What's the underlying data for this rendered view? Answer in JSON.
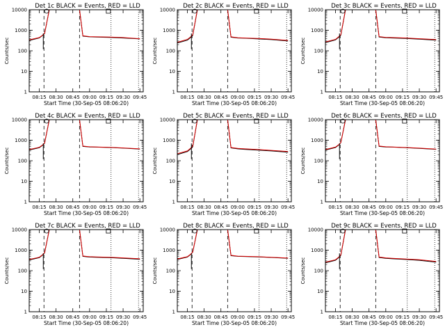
{
  "colors": {
    "events": "#000000",
    "lld": "#dd0000",
    "background": "#ffffff"
  },
  "common": {
    "ylabel": "Counts/sec",
    "y_ticks": [
      1,
      10,
      100,
      1000,
      10000
    ],
    "y_tick_labels": [
      "1",
      "10",
      "100",
      "1000",
      "10000"
    ],
    "x_range": [
      8.1,
      9.8
    ],
    "x_ticks": [
      8.25,
      8.5,
      8.75,
      9.0,
      9.25,
      9.5,
      9.75
    ],
    "x_tick_labels": [
      "08:15",
      "08:30",
      "08:45",
      "09:00",
      "09:15",
      "09:30",
      "09:45"
    ],
    "dashed_lines_x": [
      8.32,
      8.85
    ],
    "dotted_lines_x": [
      9.32,
      9.73
    ],
    "marker_x": 9.28
  },
  "chart_data": [
    {
      "type": "line",
      "panel": 1,
      "title": "Det 1c BLACK = Events, RED = LLD",
      "xlabel": "Start Time (30-Sep-05 08:06:20)",
      "ylabel": "Counts/sec",
      "xlim": [
        8.1,
        9.8
      ],
      "ylim": [
        1,
        10000
      ],
      "yscale": "log",
      "series": [
        {
          "name": "Events",
          "color": "#000000",
          "x": [
            8.1,
            8.25,
            8.3,
            8.33,
            8.4,
            8.85,
            8.9,
            9.0,
            9.1,
            9.3,
            9.5,
            9.75
          ],
          "y": [
            320,
            420,
            560,
            700,
            10000,
            10000,
            520,
            480,
            470,
            450,
            420,
            380
          ]
        },
        {
          "name": "LLD",
          "color": "#dd0000",
          "x": [
            8.1,
            8.25,
            8.3,
            8.33,
            8.4,
            8.85,
            8.9,
            9.0,
            9.1,
            9.3,
            9.5,
            9.75
          ],
          "y": [
            340,
            440,
            580,
            720,
            10000,
            10000,
            540,
            490,
            480,
            470,
            440,
            390
          ]
        }
      ]
    },
    {
      "type": "line",
      "panel": 2,
      "title": "Det 2c BLACK = Events, RED = LLD",
      "xlabel": "Start Time (30-Sep-05 08:06:20)",
      "ylabel": "Counts/sec",
      "xlim": [
        8.1,
        9.8
      ],
      "ylim": [
        1,
        10000
      ],
      "yscale": "log",
      "series": [
        {
          "name": "Events",
          "color": "#000000",
          "x": [
            8.1,
            8.25,
            8.3,
            8.33,
            8.4,
            8.85,
            8.9,
            9.0,
            9.1,
            9.3,
            9.5,
            9.75
          ],
          "y": [
            240,
            330,
            450,
            560,
            10000,
            10000,
            460,
            420,
            410,
            380,
            350,
            300
          ]
        },
        {
          "name": "LLD",
          "color": "#dd0000",
          "x": [
            8.1,
            8.25,
            8.3,
            8.33,
            8.4,
            8.85,
            8.9,
            9.0,
            9.1,
            9.3,
            9.5,
            9.75
          ],
          "y": [
            260,
            360,
            480,
            600,
            10000,
            10000,
            480,
            430,
            420,
            400,
            370,
            320
          ]
        }
      ]
    },
    {
      "type": "line",
      "panel": 3,
      "title": "Det 3c BLACK = Events, RED = LLD",
      "xlabel": "Start Time (30-Sep-05 08:06:20)",
      "ylabel": "Counts/sec",
      "xlim": [
        8.1,
        9.8
      ],
      "ylim": [
        1,
        10000
      ],
      "yscale": "log",
      "series": [
        {
          "name": "Events",
          "color": "#000000",
          "x": [
            8.1,
            8.25,
            8.3,
            8.33,
            8.4,
            8.85,
            8.9,
            9.0,
            9.1,
            9.3,
            9.5,
            9.75
          ],
          "y": [
            250,
            340,
            460,
            580,
            10000,
            10000,
            470,
            430,
            420,
            400,
            370,
            330
          ]
        },
        {
          "name": "LLD",
          "color": "#dd0000",
          "x": [
            8.1,
            8.25,
            8.3,
            8.33,
            8.4,
            8.85,
            8.9,
            9.0,
            9.1,
            9.3,
            9.5,
            9.75
          ],
          "y": [
            270,
            360,
            490,
            610,
            10000,
            10000,
            490,
            450,
            440,
            420,
            390,
            350
          ]
        }
      ]
    },
    {
      "type": "line",
      "panel": 4,
      "title": "Det 4c BLACK = Events, RED = LLD",
      "xlabel": "Start Time (30-Sep-05 08:06:20)",
      "ylabel": "Counts/sec",
      "xlim": [
        8.1,
        9.8
      ],
      "ylim": [
        1,
        10000
      ],
      "yscale": "log",
      "series": [
        {
          "name": "Events",
          "color": "#000000",
          "x": [
            8.1,
            8.25,
            8.3,
            8.33,
            8.4,
            8.85,
            8.9,
            9.0,
            9.1,
            9.3,
            9.5,
            9.75
          ],
          "y": [
            330,
            430,
            570,
            720,
            10000,
            10000,
            500,
            470,
            460,
            440,
            410,
            370
          ]
        },
        {
          "name": "LLD",
          "color": "#dd0000",
          "x": [
            8.1,
            8.25,
            8.3,
            8.33,
            8.4,
            8.85,
            8.9,
            9.0,
            9.1,
            9.3,
            9.5,
            9.75
          ],
          "y": [
            350,
            450,
            590,
            740,
            10000,
            10000,
            520,
            480,
            470,
            450,
            420,
            380
          ]
        }
      ]
    },
    {
      "type": "line",
      "panel": 5,
      "title": "Det 5c BLACK = Events, RED = LLD",
      "xlabel": "Start Time (30-Sep-05 08:06:20)",
      "ylabel": "Counts/sec",
      "xlim": [
        8.1,
        9.8
      ],
      "ylim": [
        1,
        10000
      ],
      "yscale": "log",
      "series": [
        {
          "name": "Events",
          "color": "#000000",
          "x": [
            8.1,
            8.25,
            8.3,
            8.33,
            8.4,
            8.85,
            8.9,
            9.0,
            9.1,
            9.3,
            9.5,
            9.75
          ],
          "y": [
            200,
            280,
            380,
            480,
            10000,
            10000,
            420,
            380,
            360,
            330,
            300,
            260
          ]
        },
        {
          "name": "LLD",
          "color": "#dd0000",
          "x": [
            8.1,
            8.25,
            8.3,
            8.33,
            8.4,
            8.85,
            8.9,
            9.0,
            9.1,
            9.3,
            9.5,
            9.75
          ],
          "y": [
            220,
            300,
            410,
            520,
            10000,
            10000,
            440,
            400,
            380,
            350,
            320,
            280
          ]
        }
      ]
    },
    {
      "type": "line",
      "panel": 6,
      "title": "Det 6c BLACK = Events, RED = LLD",
      "xlabel": "Start Time (30-Sep-05 08:06:20)",
      "ylabel": "Counts/sec",
      "xlim": [
        8.1,
        9.8
      ],
      "ylim": [
        1,
        10000
      ],
      "yscale": "log",
      "series": [
        {
          "name": "Events",
          "color": "#000000",
          "x": [
            8.1,
            8.25,
            8.3,
            8.33,
            8.4,
            8.85,
            8.9,
            9.0,
            9.1,
            9.3,
            9.5,
            9.75
          ],
          "y": [
            330,
            440,
            590,
            760,
            10000,
            10000,
            500,
            470,
            460,
            430,
            400,
            360
          ]
        },
        {
          "name": "LLD",
          "color": "#dd0000",
          "x": [
            8.1,
            8.25,
            8.3,
            8.33,
            8.4,
            8.85,
            8.9,
            9.0,
            9.1,
            9.3,
            9.5,
            9.75
          ],
          "y": [
            350,
            460,
            610,
            780,
            10000,
            10000,
            520,
            480,
            470,
            440,
            410,
            370
          ]
        }
      ]
    },
    {
      "type": "line",
      "panel": 7,
      "title": "Det 7c BLACK = Events, RED = LLD",
      "xlabel": "Start Time (30-Sep-05 08:06:20)",
      "ylabel": "Counts/sec",
      "xlim": [
        8.1,
        9.8
      ],
      "ylim": [
        1,
        10000
      ],
      "yscale": "log",
      "series": [
        {
          "name": "Events",
          "color": "#000000",
          "x": [
            8.1,
            8.25,
            8.3,
            8.33,
            8.4,
            8.85,
            8.9,
            9.0,
            9.1,
            9.3,
            9.5,
            9.75
          ],
          "y": [
            330,
            430,
            580,
            740,
            10000,
            10000,
            500,
            460,
            450,
            430,
            400,
            360
          ]
        },
        {
          "name": "LLD",
          "color": "#dd0000",
          "x": [
            8.1,
            8.25,
            8.3,
            8.33,
            8.4,
            8.85,
            8.9,
            9.0,
            9.1,
            9.3,
            9.5,
            9.75
          ],
          "y": [
            350,
            450,
            600,
            760,
            10000,
            10000,
            520,
            480,
            470,
            450,
            420,
            380
          ]
        }
      ]
    },
    {
      "type": "line",
      "panel": 8,
      "title": "Det 8c BLACK = Events, RED = LLD",
      "xlabel": "Start Time (30-Sep-05 08:06:20)",
      "ylabel": "Counts/sec",
      "xlim": [
        8.1,
        9.8
      ],
      "ylim": [
        1,
        10000
      ],
      "yscale": "log",
      "series": [
        {
          "name": "Events",
          "color": "#000000",
          "x": [
            8.1,
            8.25,
            8.3,
            8.33,
            8.4,
            8.85,
            8.9,
            9.0,
            9.1,
            9.3,
            9.5,
            9.75
          ],
          "y": [
            350,
            460,
            620,
            800,
            10000,
            10000,
            540,
            500,
            490,
            470,
            440,
            400
          ]
        },
        {
          "name": "LLD",
          "color": "#dd0000",
          "x": [
            8.1,
            8.25,
            8.3,
            8.33,
            8.4,
            8.85,
            8.9,
            9.0,
            9.1,
            9.3,
            9.5,
            9.75
          ],
          "y": [
            370,
            480,
            640,
            820,
            10000,
            10000,
            560,
            510,
            500,
            480,
            450,
            410
          ]
        }
      ]
    },
    {
      "type": "line",
      "panel": 9,
      "title": "Det 9c BLACK = Events, RED = LLD",
      "xlabel": "Start Time (30-Sep-05 08:06:20)",
      "ylabel": "Counts/sec",
      "xlim": [
        8.1,
        9.8
      ],
      "ylim": [
        1,
        10000
      ],
      "yscale": "log",
      "series": [
        {
          "name": "Events",
          "color": "#000000",
          "x": [
            8.1,
            8.25,
            8.3,
            8.33,
            8.4,
            8.85,
            8.9,
            9.0,
            9.1,
            9.3,
            9.5,
            9.75
          ],
          "y": [
            240,
            320,
            440,
            560,
            10000,
            10000,
            440,
            400,
            380,
            350,
            320,
            260
          ]
        },
        {
          "name": "LLD",
          "color": "#dd0000",
          "x": [
            8.1,
            8.25,
            8.3,
            8.33,
            8.4,
            8.85,
            8.9,
            9.0,
            9.1,
            9.3,
            9.5,
            9.75
          ],
          "y": [
            260,
            340,
            460,
            590,
            10000,
            10000,
            460,
            420,
            400,
            370,
            340,
            280
          ]
        }
      ]
    }
  ]
}
